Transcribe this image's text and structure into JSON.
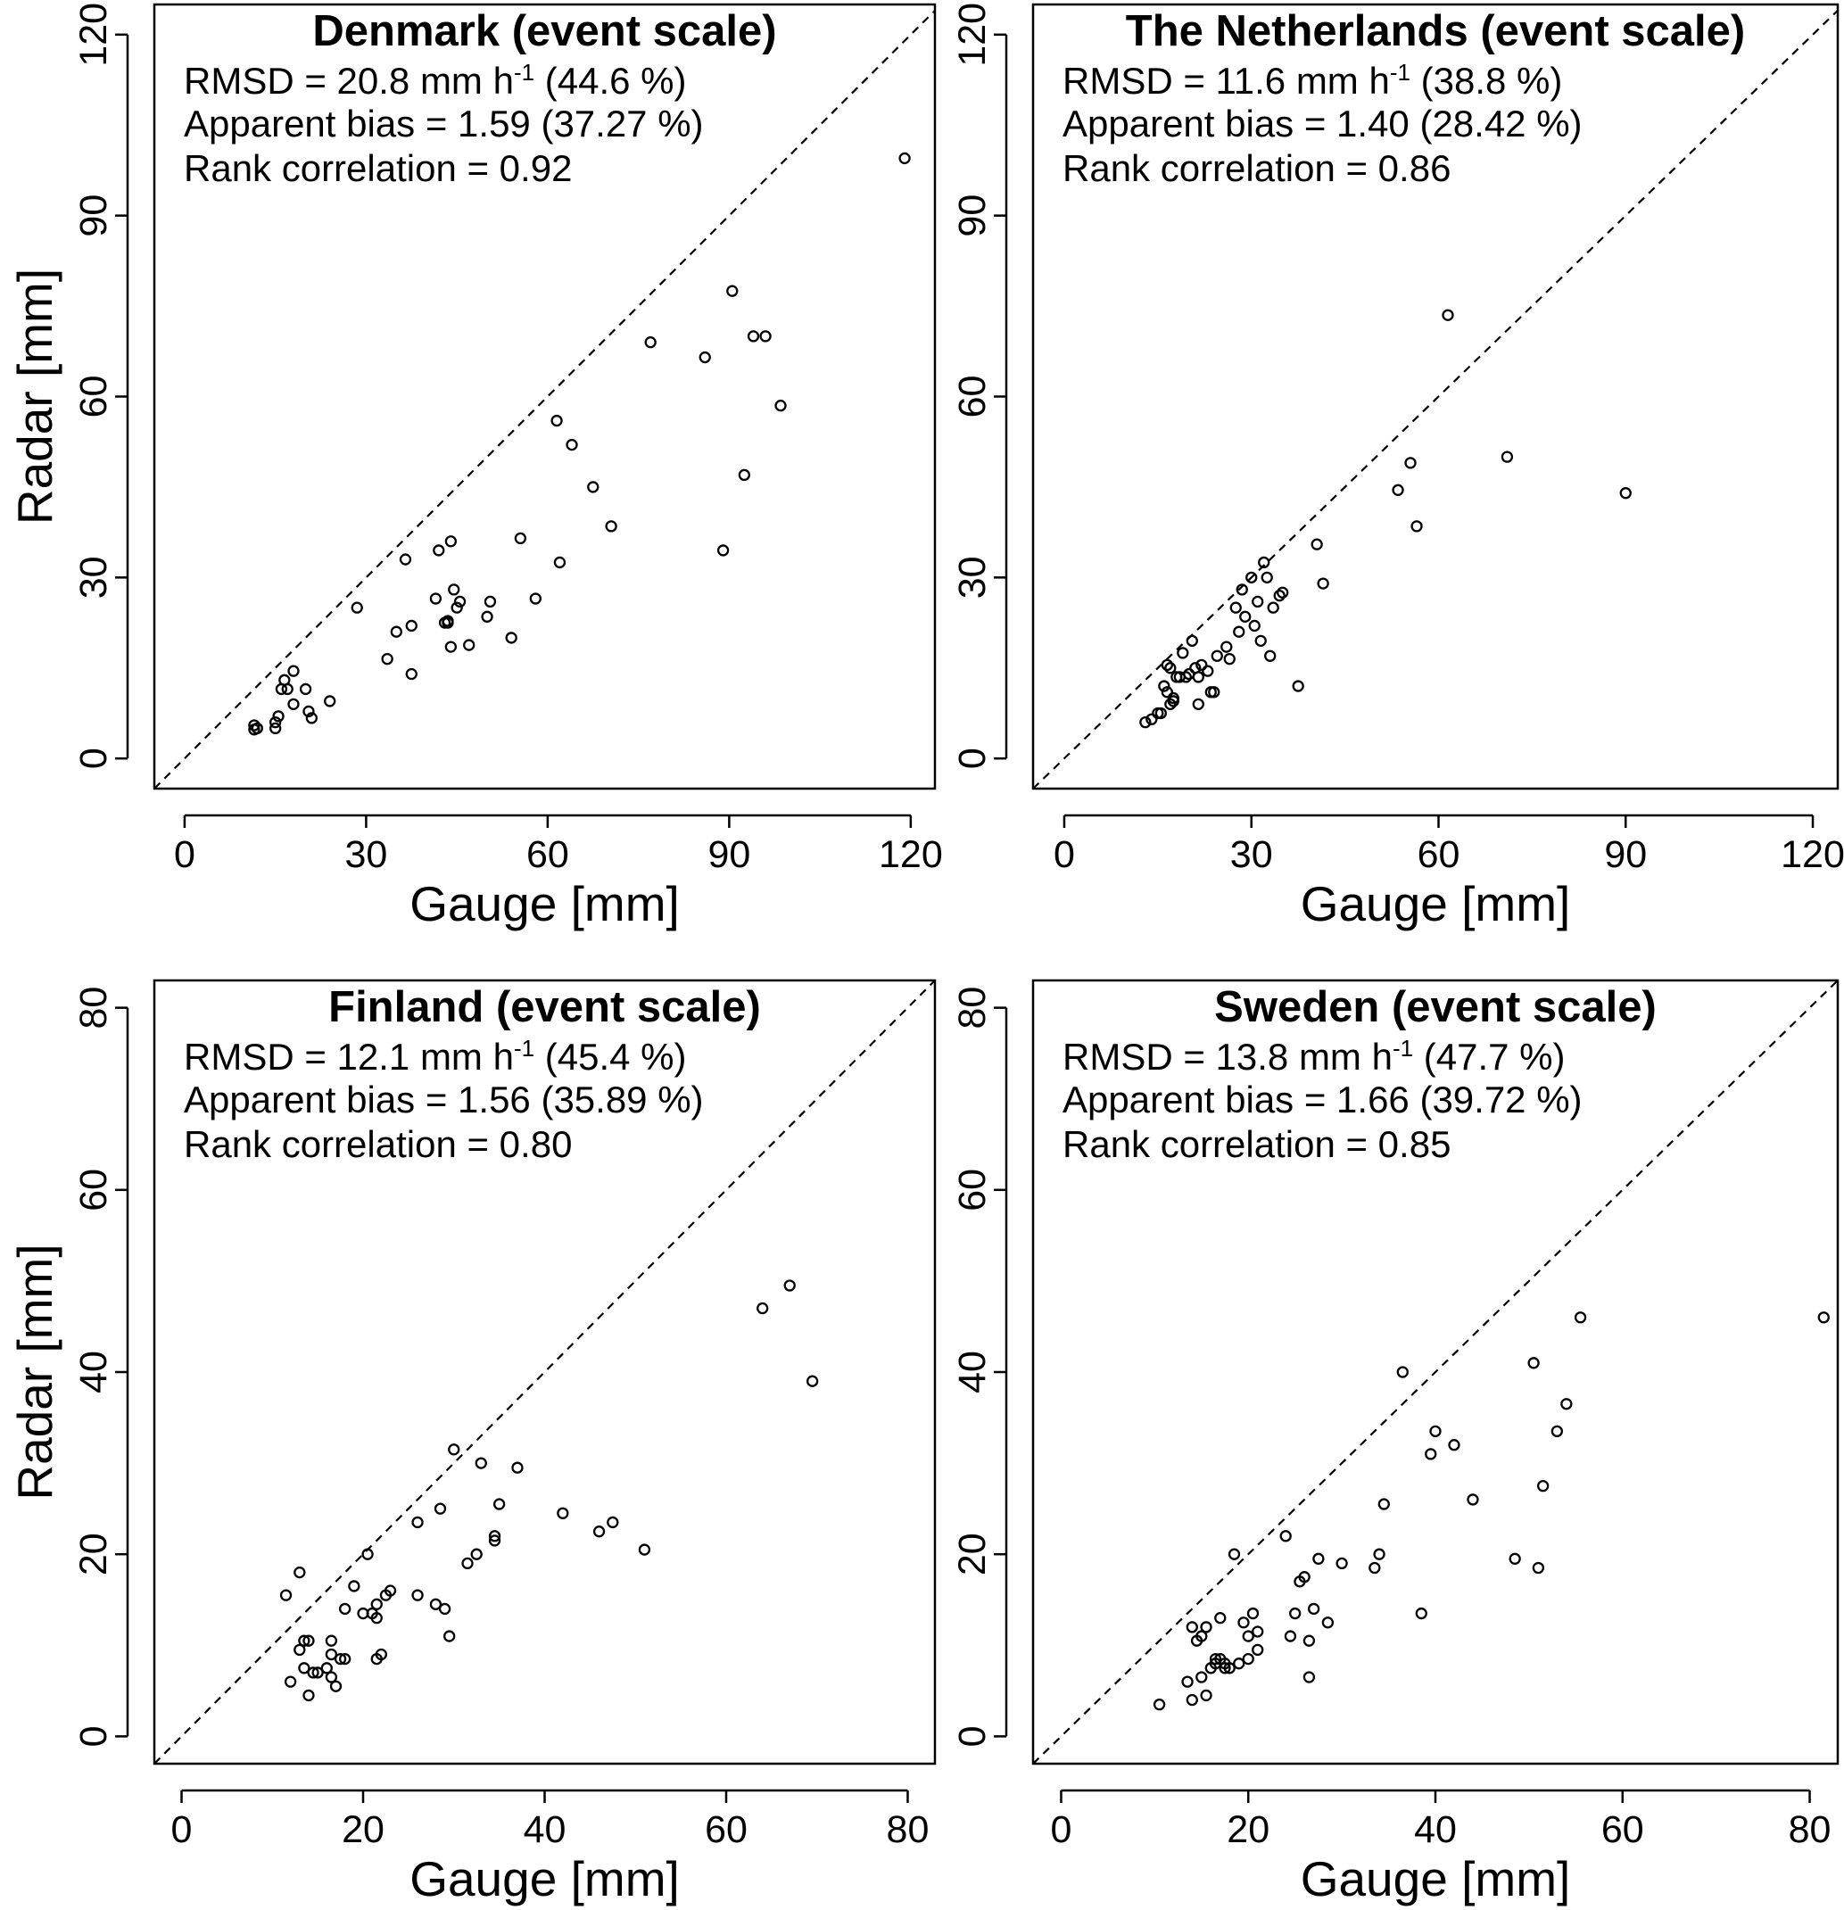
{
  "chart_data": [
    {
      "type": "scatter",
      "title": "Denmark (event scale)",
      "stats": {
        "rmsd_prefix": "RMSD = 20.8 mm h",
        "rmsd_sup": "-1",
        "rmsd_suffix": " (44.6 %)",
        "bias": "Apparent bias = 1.59 (37.27 %)",
        "rank": "Rank correlation = 0.92"
      },
      "xlabel": "Gauge [mm]",
      "ylabel": "Radar [mm]",
      "xlim": [
        -5,
        124
      ],
      "ylim": [
        -5,
        125
      ],
      "xticks": [
        0,
        30,
        60,
        90,
        120
      ],
      "yticks": [
        0,
        30,
        60,
        90,
        120
      ],
      "one_to_one_line": true,
      "points": [
        [
          11.5,
          5.5
        ],
        [
          11.5,
          4.8
        ],
        [
          12,
          5
        ],
        [
          15,
          5
        ],
        [
          15,
          6
        ],
        [
          15.5,
          7
        ],
        [
          16,
          11.5
        ],
        [
          16.5,
          13
        ],
        [
          17,
          11.5
        ],
        [
          18,
          14.5
        ],
        [
          18,
          9
        ],
        [
          20,
          11.5
        ],
        [
          20.5,
          7.8
        ],
        [
          21,
          6.7
        ],
        [
          24,
          9.5
        ],
        [
          28.5,
          25
        ],
        [
          33.5,
          16.5
        ],
        [
          35,
          21
        ],
        [
          36.5,
          33
        ],
        [
          37.5,
          22
        ],
        [
          37.5,
          14
        ],
        [
          41.5,
          26.5
        ],
        [
          42,
          34.5
        ],
        [
          43,
          22.5
        ],
        [
          43.5,
          22.5
        ],
        [
          43.5,
          22.8
        ],
        [
          44,
          18.5
        ],
        [
          44,
          36
        ],
        [
          44.5,
          28
        ],
        [
          45,
          25
        ],
        [
          45.5,
          26
        ],
        [
          47,
          18.8
        ],
        [
          50,
          23.5
        ],
        [
          50.5,
          26
        ],
        [
          54,
          20
        ],
        [
          55.5,
          36.5
        ],
        [
          58,
          26.5
        ],
        [
          61.5,
          56
        ],
        [
          62,
          32.5
        ],
        [
          64,
          52
        ],
        [
          67.5,
          45
        ],
        [
          70.5,
          38.5
        ],
        [
          77,
          69
        ],
        [
          86,
          66.5
        ],
        [
          89,
          34.5
        ],
        [
          90.5,
          77.5
        ],
        [
          92.5,
          47
        ],
        [
          94,
          70
        ],
        [
          96,
          70
        ],
        [
          98.5,
          58.5
        ],
        [
          119,
          99.5
        ]
      ]
    },
    {
      "type": "scatter",
      "title": "The Netherlands (event scale)",
      "stats": {
        "rmsd_prefix": "RMSD = 11.6 mm h",
        "rmsd_sup": "-1",
        "rmsd_suffix": " (38.8 %)",
        "bias": "Apparent bias = 1.40 (28.42 %)",
        "rank": "Rank correlation = 0.86"
      },
      "xlabel": "Gauge [mm]",
      "ylabel": "",
      "xlim": [
        -5,
        124
      ],
      "ylim": [
        -5,
        125
      ],
      "xticks": [
        0,
        30,
        60,
        90,
        120
      ],
      "yticks": [
        0,
        30,
        60,
        90,
        120
      ],
      "one_to_one_line": true,
      "points": [
        [
          13,
          6
        ],
        [
          14,
          6.5
        ],
        [
          15,
          7.5
        ],
        [
          15.5,
          7.5
        ],
        [
          16,
          12
        ],
        [
          16.5,
          11
        ],
        [
          16.5,
          15.5
        ],
        [
          17,
          15
        ],
        [
          17,
          9
        ],
        [
          17.5,
          9.5
        ],
        [
          17.5,
          10
        ],
        [
          18,
          13.5
        ],
        [
          18.5,
          13.5
        ],
        [
          19,
          17.5
        ],
        [
          19.5,
          13.5
        ],
        [
          20,
          14
        ],
        [
          20.5,
          19.5
        ],
        [
          21,
          15
        ],
        [
          21.5,
          13.5
        ],
        [
          21.5,
          9
        ],
        [
          22,
          15.5
        ],
        [
          23,
          14.5
        ],
        [
          23.5,
          11
        ],
        [
          24,
          11
        ],
        [
          24.5,
          17
        ],
        [
          26,
          18.5
        ],
        [
          26.5,
          16.5
        ],
        [
          27.5,
          25
        ],
        [
          28,
          21
        ],
        [
          28.5,
          28
        ],
        [
          29,
          23.5
        ],
        [
          30,
          30
        ],
        [
          30.5,
          22
        ],
        [
          31,
          26
        ],
        [
          31.5,
          19.5
        ],
        [
          32,
          32.5
        ],
        [
          32.5,
          30
        ],
        [
          33,
          17
        ],
        [
          33.5,
          25
        ],
        [
          34.5,
          27
        ],
        [
          35,
          27.5
        ],
        [
          37.5,
          12
        ],
        [
          40.5,
          35.5
        ],
        [
          41.5,
          29
        ],
        [
          53.5,
          44.5
        ],
        [
          55.5,
          49
        ],
        [
          56.5,
          38.5
        ],
        [
          61.5,
          73.5
        ],
        [
          71,
          50
        ],
        [
          90,
          44
        ]
      ]
    },
    {
      "type": "scatter",
      "title": "Finland (event scale)",
      "stats": {
        "rmsd_prefix": "RMSD = 12.1 mm h",
        "rmsd_sup": "-1",
        "rmsd_suffix": " (45.4 %)",
        "bias": "Apparent bias = 1.56 (35.89 %)",
        "rank": "Rank correlation = 0.80"
      },
      "xlabel": "Gauge [mm]",
      "ylabel": "Radar [mm]",
      "xlim": [
        -3,
        83
      ],
      "ylim": [
        -3,
        83
      ],
      "xticks": [
        0,
        20,
        40,
        60,
        80
      ],
      "yticks": [
        0,
        20,
        40,
        60,
        80
      ],
      "one_to_one_line": true,
      "points": [
        [
          11.5,
          15.5
        ],
        [
          12,
          6
        ],
        [
          13,
          18
        ],
        [
          13,
          9.5
        ],
        [
          13.5,
          7.5
        ],
        [
          13.5,
          10.5
        ],
        [
          14,
          4.5
        ],
        [
          14,
          10.5
        ],
        [
          14.5,
          7
        ],
        [
          15,
          7
        ],
        [
          16,
          7.5
        ],
        [
          16.5,
          6.5
        ],
        [
          16.5,
          9
        ],
        [
          16.5,
          10.5
        ],
        [
          17,
          5.5
        ],
        [
          17.5,
          8.5
        ],
        [
          18,
          14
        ],
        [
          18,
          8.5
        ],
        [
          19,
          16.5
        ],
        [
          20,
          13.5
        ],
        [
          20.5,
          20
        ],
        [
          21,
          13.5
        ],
        [
          21.5,
          13
        ],
        [
          21.5,
          14.5
        ],
        [
          21.5,
          8.5
        ],
        [
          22,
          9
        ],
        [
          22.5,
          15.5
        ],
        [
          23,
          16
        ],
        [
          26,
          15.5
        ],
        [
          26,
          23.5
        ],
        [
          28,
          14.5
        ],
        [
          28.5,
          25
        ],
        [
          29,
          14
        ],
        [
          29.5,
          11
        ],
        [
          30,
          31.5
        ],
        [
          31.5,
          19
        ],
        [
          32.5,
          20
        ],
        [
          33,
          30
        ],
        [
          34.5,
          21.5
        ],
        [
          34.5,
          22
        ],
        [
          35,
          25.5
        ],
        [
          37,
          29.5
        ],
        [
          42,
          24.5
        ],
        [
          46,
          22.5
        ],
        [
          47.5,
          23.5
        ],
        [
          51,
          20.5
        ],
        [
          64,
          47
        ],
        [
          67,
          49.5
        ],
        [
          69.5,
          39
        ]
      ]
    },
    {
      "type": "scatter",
      "title": "Sweden (event scale)",
      "stats": {
        "rmsd_prefix": "RMSD = 13.8 mm h",
        "rmsd_sup": "-1",
        "rmsd_suffix": " (47.7 %)",
        "bias": "Apparent bias = 1.66 (39.72 %)",
        "rank": "Rank correlation = 0.85"
      },
      "xlabel": "Gauge [mm]",
      "ylabel": "",
      "xlim": [
        -3,
        83
      ],
      "ylim": [
        -3,
        83
      ],
      "xticks": [
        0,
        20,
        40,
        60,
        80
      ],
      "yticks": [
        0,
        20,
        40,
        60,
        80
      ],
      "one_to_one_line": true,
      "points": [
        [
          10.5,
          3.5
        ],
        [
          13.5,
          6
        ],
        [
          14,
          12
        ],
        [
          14,
          4
        ],
        [
          14.5,
          10.5
        ],
        [
          15,
          11
        ],
        [
          15,
          6.5
        ],
        [
          15.5,
          4.5
        ],
        [
          15.5,
          12
        ],
        [
          16,
          7.5
        ],
        [
          16.5,
          8
        ],
        [
          16.5,
          8.5
        ],
        [
          17,
          8.5
        ],
        [
          17.5,
          8
        ],
        [
          17.5,
          7.5
        ],
        [
          17,
          13
        ],
        [
          18,
          7.5
        ],
        [
          18.5,
          20
        ],
        [
          19,
          8
        ],
        [
          19.5,
          12.5
        ],
        [
          20,
          11
        ],
        [
          20,
          8.5
        ],
        [
          20.5,
          13.5
        ],
        [
          21,
          11.5
        ],
        [
          21,
          9.5
        ],
        [
          24,
          22
        ],
        [
          24.5,
          11
        ],
        [
          25,
          13.5
        ],
        [
          25.5,
          17
        ],
        [
          26,
          17.5
        ],
        [
          26.5,
          10.5
        ],
        [
          26.5,
          6.5
        ],
        [
          27,
          14
        ],
        [
          27.5,
          19.5
        ],
        [
          28.5,
          12.5
        ],
        [
          30,
          19
        ],
        [
          33.5,
          18.5
        ],
        [
          34,
          20
        ],
        [
          34.5,
          25.5
        ],
        [
          36.5,
          40
        ],
        [
          38.5,
          13.5
        ],
        [
          39.5,
          31
        ],
        [
          40,
          33.5
        ],
        [
          42,
          32
        ],
        [
          44,
          26
        ],
        [
          48.5,
          19.5
        ],
        [
          50.5,
          41
        ],
        [
          51,
          18.5
        ],
        [
          51.5,
          27.5
        ],
        [
          53,
          33.5
        ],
        [
          54,
          36.5
        ],
        [
          55.5,
          46
        ],
        [
          81.5,
          46
        ]
      ]
    }
  ]
}
